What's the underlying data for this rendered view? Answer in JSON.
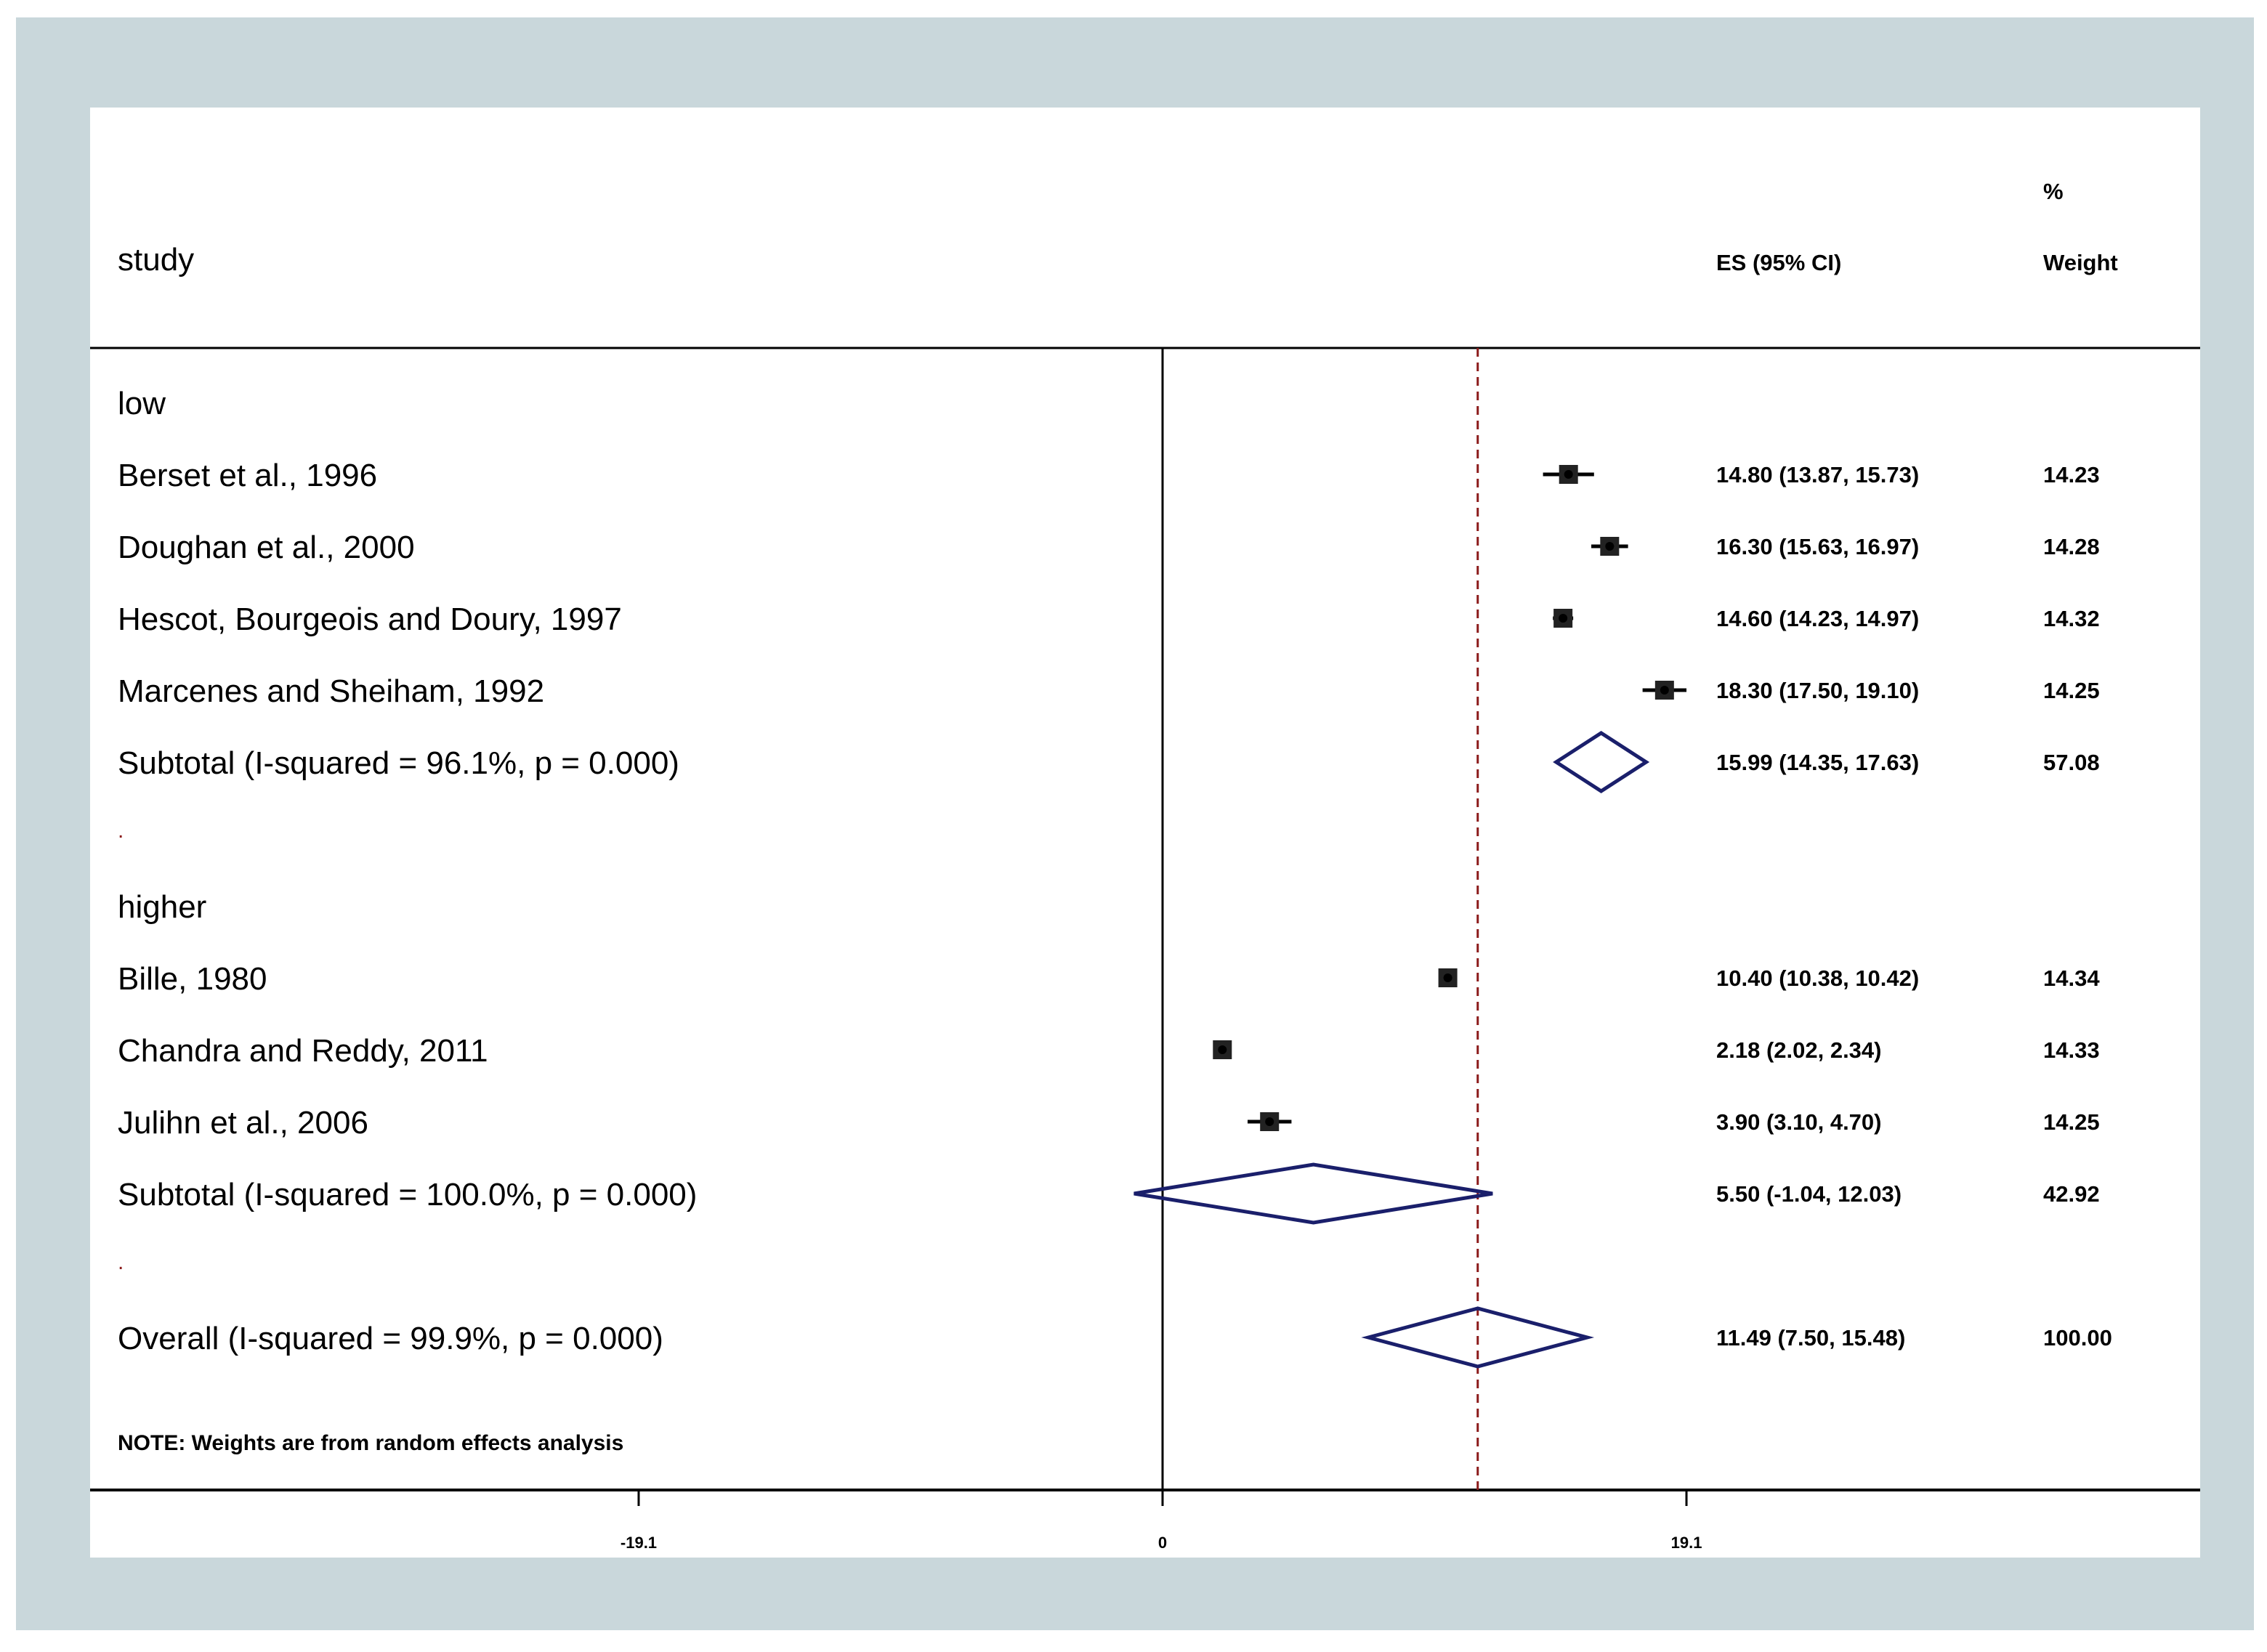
{
  "chart_data": {
    "type": "forest",
    "header": {
      "study": "study",
      "es": "ES (95% CI)",
      "weight_top": "%",
      "weight": "Weight"
    },
    "x_ticks": [
      -19.1,
      0,
      19.1
    ],
    "x_tick_labels": [
      "-19.1",
      "0",
      "19.1"
    ],
    "null_line": 0,
    "overall_line": 11.49,
    "rows": [
      {
        "kind": "group",
        "label": "low"
      },
      {
        "kind": "study",
        "label": "Berset et al., 1996",
        "es": 14.8,
        "lo": 13.87,
        "hi": 15.73,
        "es_text": "14.80 (13.87, 15.73)",
        "weight_text": "14.23"
      },
      {
        "kind": "study",
        "label": "Doughan et al., 2000",
        "es": 16.3,
        "lo": 15.63,
        "hi": 16.97,
        "es_text": "16.30 (15.63, 16.97)",
        "weight_text": "14.28"
      },
      {
        "kind": "study",
        "label": "Hescot, Bourgeois and Doury, 1997",
        "es": 14.6,
        "lo": 14.23,
        "hi": 14.97,
        "es_text": "14.60 (14.23, 14.97)",
        "weight_text": "14.32"
      },
      {
        "kind": "study",
        "label": "Marcenes and Sheiham, 1992",
        "es": 18.3,
        "lo": 17.5,
        "hi": 19.1,
        "es_text": "18.30 (17.50, 19.10)",
        "weight_text": "14.25"
      },
      {
        "kind": "subtotal",
        "label": "Subtotal  (I-squared = 96.1%, p = 0.000)",
        "es": 15.99,
        "lo": 14.35,
        "hi": 17.63,
        "es_text": "15.99 (14.35, 17.63)",
        "weight_text": "57.08"
      },
      {
        "kind": "spacer",
        "label": "."
      },
      {
        "kind": "group",
        "label": "higher"
      },
      {
        "kind": "study",
        "label": "Bille, 1980",
        "es": 10.4,
        "lo": 10.38,
        "hi": 10.42,
        "es_text": "10.40 (10.38, 10.42)",
        "weight_text": "14.34"
      },
      {
        "kind": "study",
        "label": "Chandra and Reddy, 2011",
        "es": 2.18,
        "lo": 2.02,
        "hi": 2.34,
        "es_text": "2.18 (2.02, 2.34)",
        "weight_text": "14.33"
      },
      {
        "kind": "study",
        "label": "Julihn et al., 2006",
        "es": 3.9,
        "lo": 3.1,
        "hi": 4.7,
        "es_text": "3.90 (3.10, 4.70)",
        "weight_text": "14.25"
      },
      {
        "kind": "subtotal",
        "label": "Subtotal  (I-squared = 100.0%, p = 0.000)",
        "es": 5.5,
        "lo": -1.04,
        "hi": 12.03,
        "es_text": "5.50 (-1.04, 12.03)",
        "weight_text": "42.92"
      },
      {
        "kind": "spacer",
        "label": "."
      },
      {
        "kind": "overall",
        "label": "Overall  (I-squared = 99.9%, p = 0.000)",
        "es": 11.49,
        "lo": 7.5,
        "hi": 15.48,
        "es_text": "11.49 (7.50, 15.48)",
        "weight_text": "100.00"
      }
    ],
    "note": "NOTE: Weights are from random effects analysis",
    "colors": {
      "frame": "#c9d7db",
      "panel": "#ffffff",
      "diamond": "#1a1f6b",
      "overall_line": "#8b1a1a",
      "axis": "#000000"
    }
  }
}
